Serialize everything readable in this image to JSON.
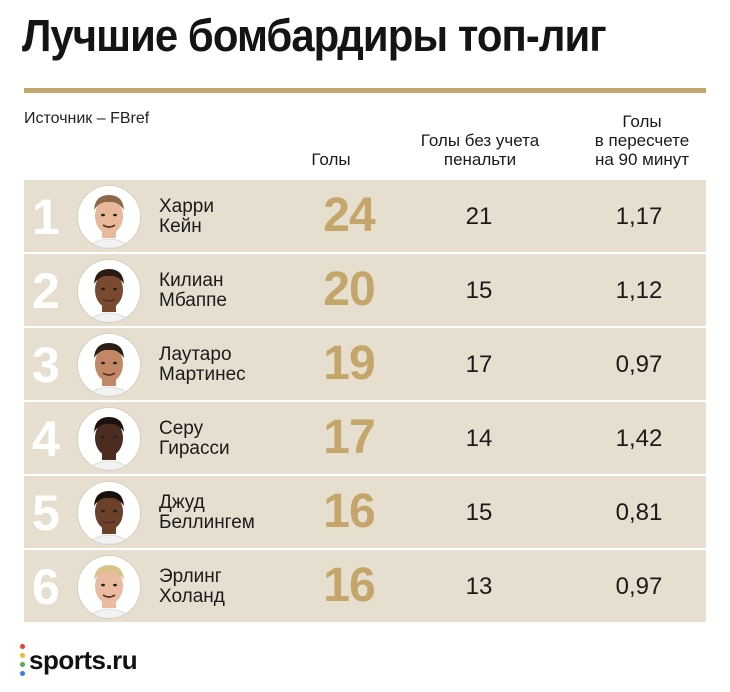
{
  "header": {
    "title": "Лучшие бомбардиры топ-лиг",
    "source": "Источник – FBref"
  },
  "columns": {
    "goals": "Голы",
    "non_penalty": "Голы без учета\nпенальти",
    "per90": "Голы\nв пересчете\nна 90 минут"
  },
  "players": [
    {
      "rank": "1",
      "first": "Харри",
      "last": "Кейн",
      "goals": "24",
      "non_penalty": "21",
      "per90": "1,17",
      "skin": "#e7b89a",
      "hair": "#8a6a4a"
    },
    {
      "rank": "2",
      "first": "Килиан",
      "last": "Мбаппе",
      "goals": "20",
      "non_penalty": "15",
      "per90": "1,12",
      "skin": "#7a4a30",
      "hair": "#2a1a12"
    },
    {
      "rank": "3",
      "first": "Лаутаро",
      "last": "Мартинес",
      "goals": "19",
      "non_penalty": "17",
      "per90": "0,97",
      "skin": "#c28866",
      "hair": "#2b1e16"
    },
    {
      "rank": "4",
      "first": "Серу",
      "last": "Гирасси",
      "goals": "17",
      "non_penalty": "14",
      "per90": "1,42",
      "skin": "#4a2c20",
      "hair": "#1c120d"
    },
    {
      "rank": "5",
      "first": "Джуд",
      "last": "Беллингем",
      "goals": "16",
      "non_penalty": "15",
      "per90": "0,81",
      "skin": "#6b412c",
      "hair": "#1a110c"
    },
    {
      "rank": "6",
      "first": "Эрлинг",
      "last": "Холанд",
      "goals": "16",
      "non_penalty": "13",
      "per90": "0,97",
      "skin": "#eabba0",
      "hair": "#d8c48a"
    }
  ],
  "brand": {
    "name": "sports.ru",
    "dot_colors": [
      "#e0453a",
      "#f2b632",
      "#4fae4f",
      "#3a7be0"
    ]
  }
}
